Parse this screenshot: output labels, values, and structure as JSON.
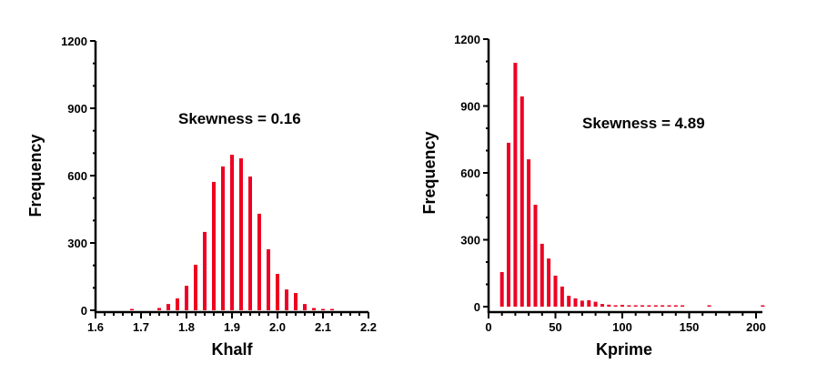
{
  "colors": {
    "bar": "#ee0022",
    "axis": "#000000"
  },
  "chart_data": [
    {
      "type": "bar",
      "title": "",
      "xlabel": "Khalf",
      "ylabel": "Frequency",
      "annotation": "Skewness = 0.16",
      "xlim": [
        1.6,
        2.2
      ],
      "ylim": [
        0,
        1200
      ],
      "xticks": [
        1.6,
        1.7,
        1.8,
        1.9,
        2.0,
        2.1,
        2.2
      ],
      "xtick_labels": [
        "1.6",
        "1.7",
        "1.8",
        "1.9",
        "2.0",
        "2.1",
        "2.2"
      ],
      "x_minor_step": 0.02,
      "yticks": [
        0,
        300,
        600,
        900,
        1200
      ],
      "ytick_labels": [
        "0",
        "300",
        "600",
        "900",
        "1200"
      ],
      "y_minor_step": 100,
      "x": [
        1.68,
        1.74,
        1.76,
        1.78,
        1.8,
        1.82,
        1.84,
        1.86,
        1.88,
        1.9,
        1.92,
        1.94,
        1.96,
        1.98,
        2.0,
        2.02,
        2.04,
        2.06,
        2.08,
        2.1,
        2.12
      ],
      "values": [
        3,
        10,
        28,
        53,
        109,
        203,
        349,
        572,
        641,
        693,
        677,
        596,
        430,
        272,
        162,
        93,
        77,
        28,
        10,
        6,
        3
      ]
    },
    {
      "type": "bar",
      "title": "",
      "xlabel": "Kprime",
      "ylabel": "Frequency",
      "annotation": "Skewness = 4.89",
      "xlim": [
        0,
        205
      ],
      "ylim": [
        0,
        1200
      ],
      "xticks": [
        0,
        50,
        100,
        150,
        200
      ],
      "xtick_labels": [
        "0",
        "50",
        "100",
        "150",
        "200"
      ],
      "x_minor_step": 10,
      "yticks": [
        0,
        300,
        600,
        900,
        1200
      ],
      "ytick_labels": [
        "0",
        "300",
        "600",
        "900",
        "1200"
      ],
      "y_minor_step": 100,
      "x": [
        10,
        15,
        20,
        25,
        30,
        35,
        40,
        45,
        50,
        55,
        60,
        65,
        70,
        75,
        80,
        85,
        90,
        95,
        100,
        105,
        110,
        115,
        120,
        125,
        130,
        135,
        140,
        145,
        165,
        205
      ],
      "values": [
        155,
        735,
        1094,
        943,
        661,
        457,
        282,
        216,
        139,
        90,
        49,
        37,
        27,
        29,
        22,
        12,
        9,
        5,
        8,
        6,
        5,
        4,
        3,
        4,
        3,
        3,
        4,
        5,
        2,
        2
      ]
    }
  ]
}
